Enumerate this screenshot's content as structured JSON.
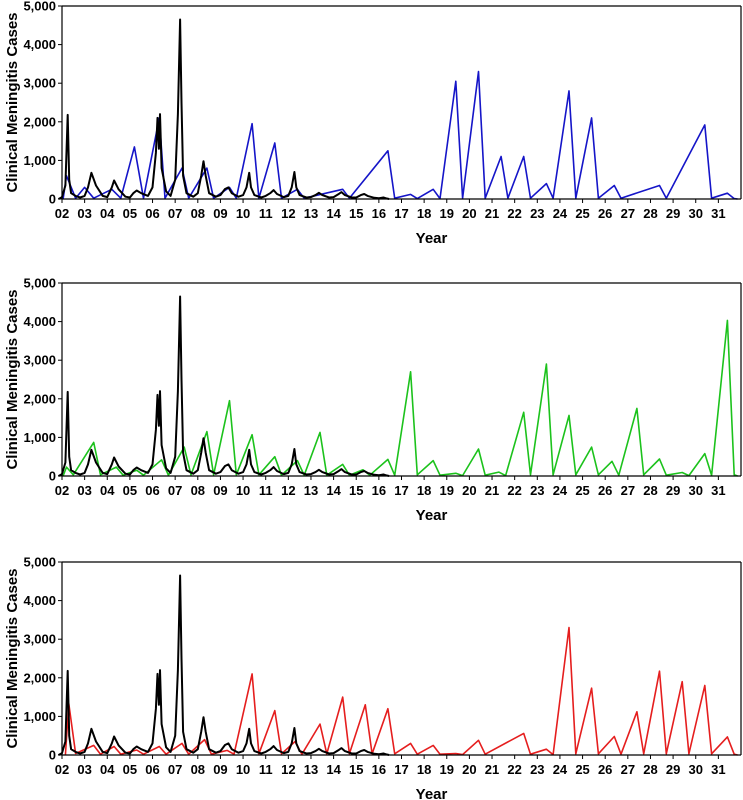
{
  "chart_data": [
    {
      "type": "line",
      "xlabel": "Year",
      "ylabel": "Clinical Meningitis Cases",
      "ylim": [
        0,
        5000
      ],
      "yticks": [
        "0",
        "1,000",
        "2,000",
        "3,000",
        "4,000",
        "5,000"
      ],
      "xlim": [
        2002,
        2032
      ],
      "xticks": [
        "02",
        "03",
        "04",
        "05",
        "06",
        "07",
        "08",
        "09",
        "10",
        "11",
        "12",
        "13",
        "14",
        "15",
        "16",
        "17",
        "18",
        "19",
        "20",
        "21",
        "22",
        "23",
        "24",
        "25",
        "26",
        "27",
        "28",
        "29",
        "30",
        "31"
      ],
      "grid": false,
      "series": [
        {
          "color": "#000000",
          "x": [
            2002.0,
            2002.15,
            2002.25,
            2002.32,
            2002.4,
            2002.6,
            2002.8,
            2003.0,
            2003.15,
            2003.3,
            2003.5,
            2003.8,
            2004.0,
            2004.2,
            2004.3,
            2004.5,
            2004.8,
            2005.0,
            2005.15,
            2005.3,
            2005.5,
            2005.8,
            2006.0,
            2006.15,
            2006.22,
            2006.28,
            2006.33,
            2006.4,
            2006.6,
            2006.8,
            2007.0,
            2007.12,
            2007.22,
            2007.28,
            2007.35,
            2007.5,
            2007.8,
            2008.0,
            2008.15,
            2008.25,
            2008.35,
            2008.5,
            2008.8,
            2009.0,
            2009.2,
            2009.35,
            2009.5,
            2009.8,
            2010.0,
            2010.15,
            2010.27,
            2010.35,
            2010.5,
            2010.8,
            2011.0,
            2011.2,
            2011.35,
            2011.5,
            2011.8,
            2012.0,
            2012.15,
            2012.27,
            2012.35,
            2012.5,
            2012.8,
            2013.0,
            2013.2,
            2013.35,
            2013.5,
            2013.8,
            2014.0,
            2014.2,
            2014.35,
            2014.5,
            2014.8,
            2015.0,
            2015.2,
            2015.35,
            2015.5,
            2015.8,
            2016.0,
            2016.2,
            2016.3
          ],
          "y": [
            50,
            350,
            2180,
            500,
            150,
            80,
            40,
            80,
            300,
            680,
            350,
            80,
            50,
            300,
            480,
            250,
            60,
            40,
            150,
            220,
            150,
            80,
            300,
            1200,
            2100,
            1300,
            2200,
            800,
            200,
            80,
            500,
            2200,
            4650,
            2500,
            600,
            150,
            60,
            150,
            600,
            980,
            600,
            150,
            60,
            100,
            260,
            300,
            150,
            60,
            100,
            300,
            680,
            300,
            100,
            40,
            80,
            150,
            230,
            130,
            50,
            80,
            300,
            700,
            300,
            100,
            40,
            50,
            100,
            160,
            100,
            40,
            50,
            120,
            180,
            100,
            40,
            40,
            100,
            130,
            80,
            30,
            20,
            40,
            20
          ]
        },
        {
          "color": "#1515c8",
          "x": [
            2002.2,
            2002.6,
            2003.0,
            2003.4,
            2004.2,
            2004.6,
            2005.2,
            2005.6,
            2006.3,
            2006.55,
            2007.3,
            2007.6,
            2008.4,
            2008.7,
            2009.4,
            2009.7,
            2010.4,
            2010.7,
            2011.4,
            2011.7,
            2012.4,
            2012.7,
            2014.4,
            2014.7,
            2016.4,
            2016.7,
            2017.4,
            2017.7,
            2018.4,
            2018.7,
            2019.4,
            2019.7,
            2020.4,
            2020.7,
            2021.4,
            2021.7,
            2022.4,
            2022.7,
            2023.4,
            2023.7,
            2024.4,
            2024.7,
            2025.4,
            2025.7,
            2026.4,
            2026.7,
            2028.4,
            2028.7,
            2030.4,
            2030.7,
            2031.4,
            2031.7
          ],
          "y": [
            600,
            20,
            300,
            20,
            250,
            20,
            1350,
            20,
            2100,
            20,
            800,
            20,
            800,
            20,
            300,
            20,
            1950,
            20,
            1450,
            20,
            250,
            20,
            250,
            20,
            1250,
            20,
            120,
            10,
            250,
            10,
            3050,
            20,
            3300,
            20,
            1100,
            20,
            1100,
            20,
            400,
            20,
            2800,
            20,
            2100,
            20,
            350,
            20,
            350,
            20,
            1920,
            20,
            150,
            10
          ]
        },
        {
          "color": "#1cc21c",
          "x": [
            2002.2,
            2002.5,
            2003.4,
            2003.7,
            2004.4,
            2004.7,
            2005.3,
            2005.6,
            2006.4,
            2006.7,
            2007.4,
            2007.7,
            2008.4,
            2008.7,
            2009.4,
            2009.7,
            2010.4,
            2010.7,
            2011.4,
            2011.7,
            2012.4,
            2012.7,
            2013.4,
            2013.7,
            2014.4,
            2014.7,
            2015.3,
            2015.6,
            2016.4,
            2016.7,
            2017.4,
            2017.7,
            2018.4,
            2018.7,
            2019.4,
            2019.7,
            2020.4,
            2020.7,
            2021.3,
            2021.6,
            2022.4,
            2022.7,
            2023.4,
            2023.7,
            2024.4,
            2024.7,
            2025.4,
            2025.7,
            2026.3,
            2026.6,
            2027.4,
            2027.7,
            2028.4,
            2028.7,
            2029.4,
            2029.7,
            2030.4,
            2030.7,
            2031.4,
            2031.7
          ],
          "y": [
            230,
            30,
            870,
            30,
            230,
            20,
            150,
            20,
            420,
            20,
            750,
            30,
            1150,
            30,
            1950,
            30,
            1070,
            30,
            500,
            20,
            400,
            20,
            1130,
            20,
            300,
            20,
            160,
            20,
            430,
            20,
            2700,
            30,
            400,
            20,
            70,
            10,
            700,
            20,
            100,
            10,
            1650,
            30,
            2900,
            30,
            1570,
            30,
            750,
            30,
            380,
            20,
            1750,
            30,
            440,
            20,
            90,
            10,
            580,
            20,
            4030,
            30
          ]
        },
        {
          "color": "#e51e1e",
          "x": [
            2002.3,
            2002.6,
            2003.4,
            2003.7,
            2004.3,
            2004.6,
            2005.3,
            2005.6,
            2006.3,
            2006.6,
            2007.3,
            2007.6,
            2008.3,
            2008.6,
            2009.3,
            2009.6,
            2010.4,
            2010.7,
            2011.4,
            2011.7,
            2012.3,
            2012.6,
            2013.4,
            2013.7,
            2014.4,
            2014.7,
            2015.4,
            2015.7,
            2016.4,
            2016.7,
            2017.4,
            2017.7,
            2018.4,
            2018.7,
            2019.4,
            2019.7,
            2020.4,
            2020.7,
            2022.4,
            2022.7,
            2023.4,
            2023.7,
            2024.4,
            2024.7,
            2025.4,
            2025.7,
            2026.4,
            2026.7,
            2027.4,
            2027.7,
            2028.4,
            2028.7,
            2029.4,
            2029.7,
            2030.4,
            2030.7,
            2031.4,
            2031.7
          ],
          "y": [
            1330,
            40,
            250,
            20,
            220,
            20,
            130,
            20,
            220,
            20,
            300,
            20,
            400,
            20,
            120,
            20,
            2100,
            30,
            1150,
            30,
            350,
            20,
            800,
            30,
            1500,
            30,
            1300,
            30,
            1200,
            30,
            300,
            20,
            250,
            20,
            40,
            10,
            380,
            20,
            560,
            20,
            150,
            10,
            3300,
            30,
            1730,
            30,
            480,
            20,
            1120,
            30,
            2170,
            30,
            1900,
            30,
            1800,
            30,
            470,
            20
          ]
        }
      ]
    }
  ]
}
